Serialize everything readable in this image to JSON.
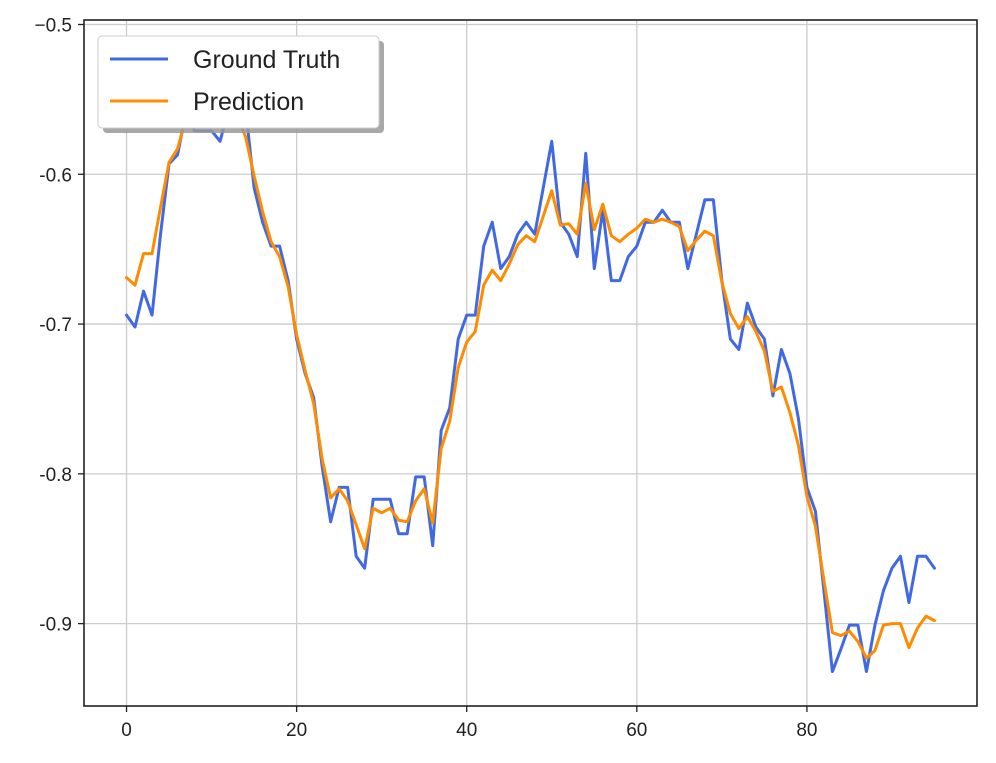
{
  "chart_data": {
    "type": "line",
    "title": "",
    "xlabel": "",
    "ylabel": "",
    "xlim": [
      -5,
      100
    ],
    "ylim": [
      -0.955,
      -0.497
    ],
    "x_ticks": [
      0,
      20,
      40,
      60,
      80
    ],
    "x_tick_labels": [
      "0",
      "20",
      "40",
      "60",
      "80"
    ],
    "y_ticks": [
      -0.5,
      -0.6,
      -0.7,
      -0.8,
      -0.9
    ],
    "y_tick_labels": [
      "−0.5",
      "-0.6",
      "-0.7",
      "-0.8",
      "-0.9"
    ],
    "grid": true,
    "legend_position": "top-left",
    "series": [
      {
        "name": "Ground Truth",
        "color": "#4169E1",
        "values": [
          -0.694,
          -0.702,
          -0.678,
          -0.694,
          -0.64,
          -0.593,
          -0.587,
          -0.558,
          -0.571,
          -0.571,
          -0.571,
          -0.578,
          -0.556,
          -0.556,
          -0.556,
          -0.609,
          -0.632,
          -0.648,
          -0.648,
          -0.671,
          -0.71,
          -0.733,
          -0.749,
          -0.795,
          -0.832,
          -0.809,
          -0.809,
          -0.855,
          -0.863,
          -0.817,
          -0.817,
          -0.817,
          -0.84,
          -0.84,
          -0.802,
          -0.802,
          -0.848,
          -0.771,
          -0.756,
          -0.71,
          -0.694,
          -0.694,
          -0.648,
          -0.632,
          -0.663,
          -0.655,
          -0.64,
          -0.632,
          -0.64,
          -0.609,
          -0.578,
          -0.632,
          -0.64,
          -0.655,
          -0.586,
          -0.663,
          -0.624,
          -0.671,
          -0.671,
          -0.655,
          -0.648,
          -0.632,
          -0.632,
          -0.624,
          -0.632,
          -0.632,
          -0.663,
          -0.64,
          -0.617,
          -0.617,
          -0.671,
          -0.71,
          -0.717,
          -0.686,
          -0.702,
          -0.71,
          -0.748,
          -0.717,
          -0.733,
          -0.763,
          -0.809,
          -0.825,
          -0.878,
          -0.932,
          -0.917,
          -0.901,
          -0.901,
          -0.932,
          -0.901,
          -0.878,
          -0.863,
          -0.855,
          -0.886,
          -0.855,
          -0.855,
          -0.863
        ]
      },
      {
        "name": "Prediction",
        "color": "#FF8C00",
        "values": [
          -0.669,
          -0.674,
          -0.653,
          -0.653,
          -0.622,
          -0.592,
          -0.583,
          -0.562,
          -0.563,
          -0.561,
          -0.561,
          -0.562,
          -0.56,
          -0.561,
          -0.575,
          -0.601,
          -0.625,
          -0.645,
          -0.655,
          -0.675,
          -0.707,
          -0.731,
          -0.753,
          -0.79,
          -0.816,
          -0.81,
          -0.818,
          -0.834,
          -0.85,
          -0.823,
          -0.826,
          -0.823,
          -0.831,
          -0.832,
          -0.818,
          -0.81,
          -0.833,
          -0.783,
          -0.765,
          -0.729,
          -0.712,
          -0.705,
          -0.674,
          -0.664,
          -0.671,
          -0.66,
          -0.647,
          -0.641,
          -0.645,
          -0.628,
          -0.611,
          -0.634,
          -0.633,
          -0.64,
          -0.606,
          -0.637,
          -0.62,
          -0.641,
          -0.645,
          -0.64,
          -0.636,
          -0.63,
          -0.632,
          -0.63,
          -0.632,
          -0.635,
          -0.651,
          -0.644,
          -0.638,
          -0.641,
          -0.672,
          -0.693,
          -0.703,
          -0.695,
          -0.705,
          -0.718,
          -0.745,
          -0.742,
          -0.759,
          -0.781,
          -0.815,
          -0.835,
          -0.871,
          -0.906,
          -0.908,
          -0.905,
          -0.912,
          -0.923,
          -0.918,
          -0.901,
          -0.9,
          -0.9,
          -0.916,
          -0.903,
          -0.895,
          -0.898
        ]
      }
    ]
  }
}
